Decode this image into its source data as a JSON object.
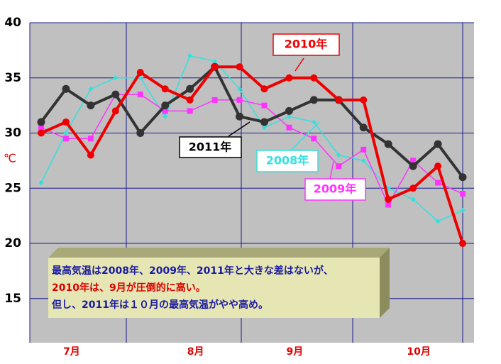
{
  "chart_data": {
    "type": "line",
    "y_label": "℃",
    "categories": [
      null,
      "7月",
      null,
      null,
      null,
      null,
      "8月",
      null,
      null,
      null,
      "9月",
      null,
      null,
      null,
      null,
      "10月",
      null,
      null
    ],
    "series": [
      {
        "name": "2008年",
        "color": "#33e0e0",
        "values": [
          25.5,
          30,
          34,
          35,
          35,
          31.5,
          37,
          36.5,
          34,
          30.5,
          31.5,
          31,
          28,
          27.5,
          25,
          24,
          22,
          23
        ]
      },
      {
        "name": "2009年",
        "color": "#ff33ff",
        "values": [
          30.5,
          29.5,
          29.5,
          33.5,
          33.5,
          32,
          32,
          33,
          33,
          32.5,
          30.5,
          29.5,
          27,
          28.5,
          23.5,
          27.5,
          25.5,
          24.5
        ]
      },
      {
        "name": "2011年",
        "color": "#333333",
        "values": [
          31,
          34,
          32.5,
          33.5,
          30,
          32.5,
          34,
          36,
          31.5,
          31,
          32,
          33,
          33,
          30.5,
          29,
          27,
          29,
          26
        ]
      },
      {
        "name": "2010年",
        "color": "#ee0000",
        "values": [
          30,
          31,
          28,
          32,
          35.5,
          34,
          33,
          36,
          36,
          34,
          35,
          35,
          33,
          33,
          24,
          25,
          27,
          20
        ]
      }
    ],
    "ylim": [
      11,
      40
    ],
    "yticks": [
      15,
      20,
      25,
      30,
      35,
      40
    ],
    "grid": true,
    "annotations": [
      "最高気温は2008年、2009年、2011年と大きな差はないが、",
      "2010年は、9月が圧倒的に高い。",
      "但し、2011年は１０月の最高気温がやや高め。"
    ]
  }
}
